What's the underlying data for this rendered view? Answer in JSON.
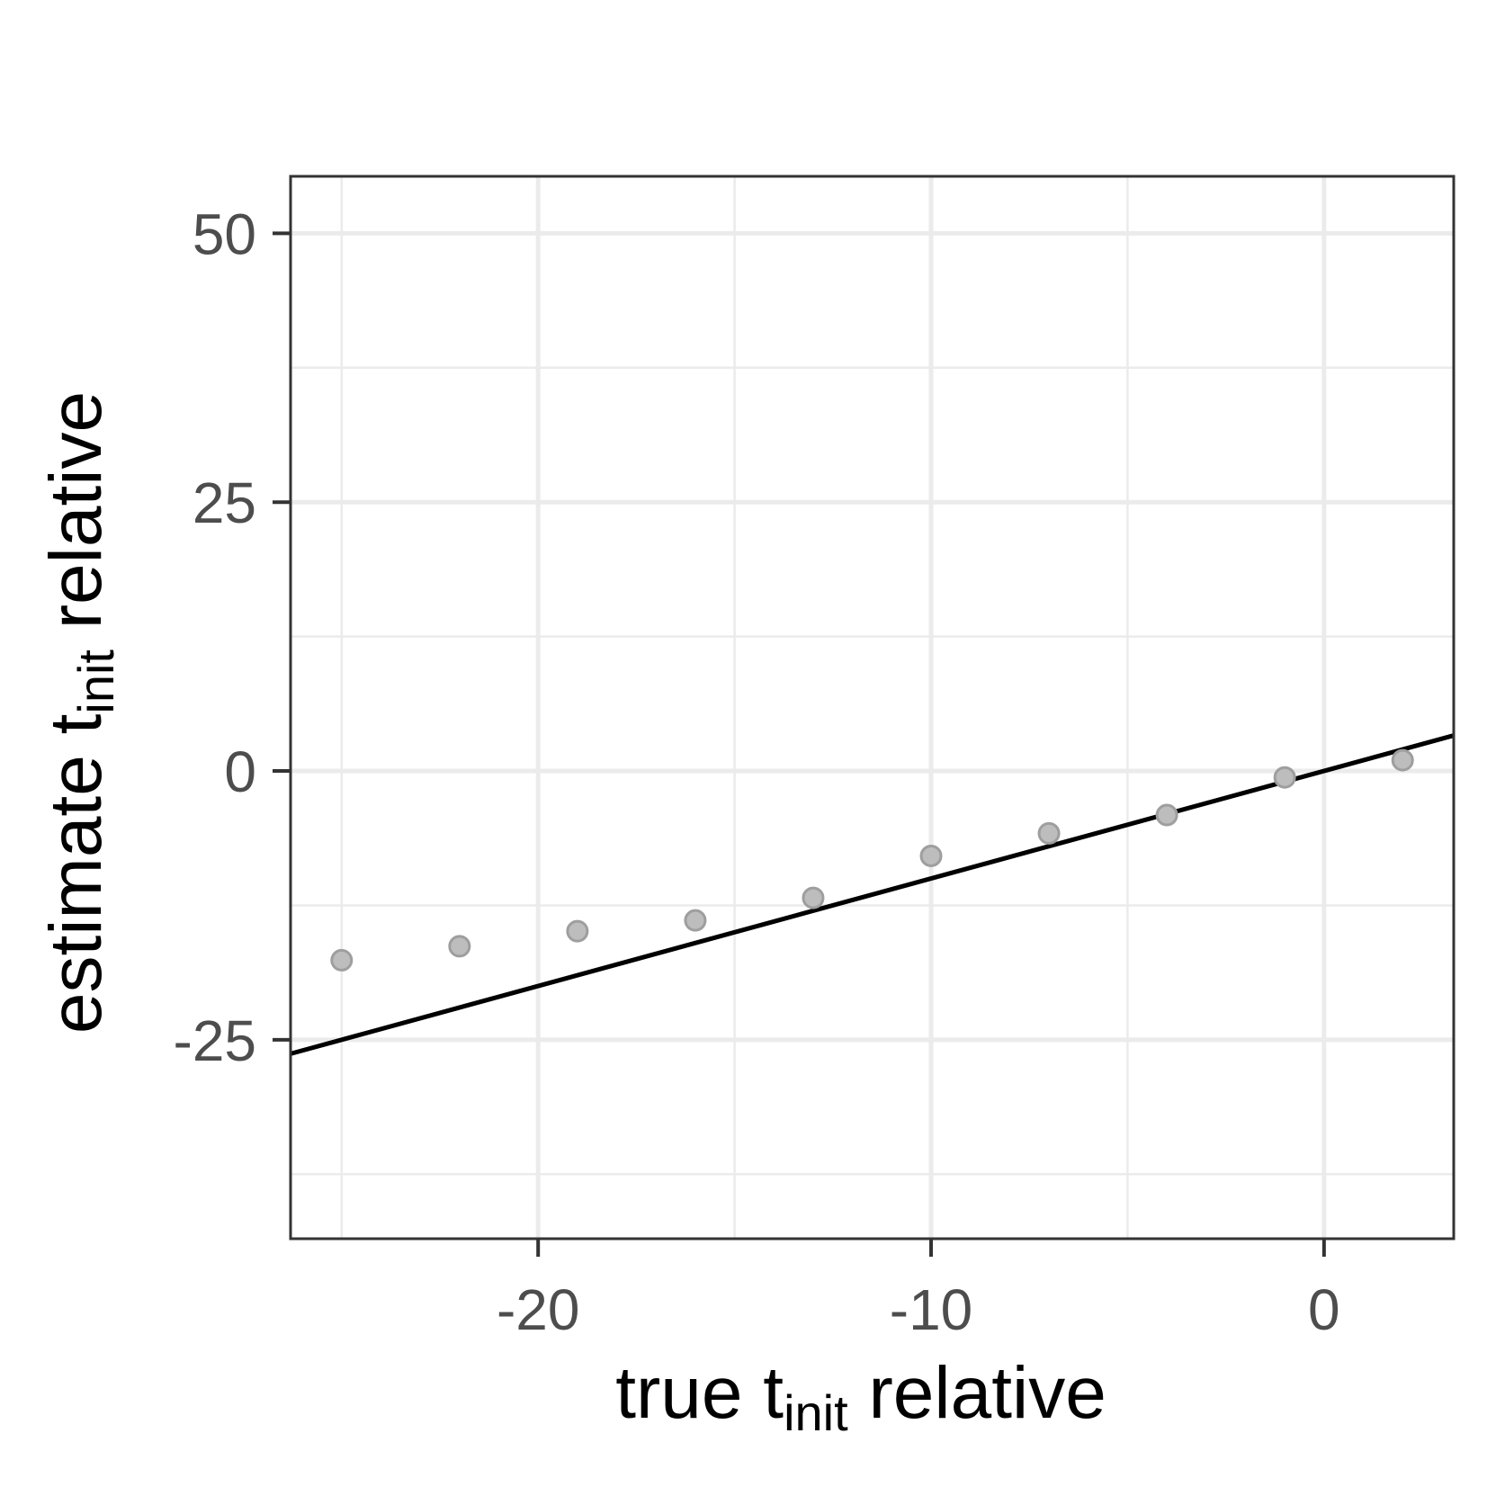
{
  "chart_data": {
    "type": "scatter",
    "title": "",
    "xlabel": {
      "main": "true t",
      "subscript": "init",
      "suffix": " relative"
    },
    "ylabel": {
      "main": "estimate t",
      "subscript": "init",
      "suffix": " relative"
    },
    "xlim": [
      -26.3,
      3.3
    ],
    "ylim": [
      -43.5,
      55.3
    ],
    "x_ticks": [
      -20,
      -10,
      0
    ],
    "x_tick_labels": [
      "-20",
      "-10",
      "0"
    ],
    "x_minor_ticks": [
      -25,
      -15,
      -5
    ],
    "y_ticks": [
      -25,
      0,
      25,
      50
    ],
    "y_tick_labels": [
      "-25",
      "0",
      "25",
      "50"
    ],
    "y_minor_ticks": [
      -37.5,
      -12.5,
      12.5,
      37.5
    ],
    "grid": true,
    "series": [
      {
        "name": "estimates",
        "type": "scatter",
        "x": [
          -25,
          -22,
          -19,
          -16,
          -13,
          -10,
          -7,
          -4,
          -1,
          2
        ],
        "y": [
          -17.6,
          -16.3,
          -14.9,
          -13.9,
          -11.8,
          -7.9,
          -5.8,
          -4.1,
          -0.6,
          1.0
        ],
        "color": "#bdbdbd",
        "stroke": "#9e9e9e"
      },
      {
        "name": "identity line",
        "type": "line",
        "x": [
          -26.3,
          3.3
        ],
        "y": [
          -26.3,
          3.3
        ],
        "color": "#000000"
      }
    ],
    "colors": {
      "panel_border": "#333333",
      "grid": "#ebebeb",
      "tick_label": "#4d4d4d",
      "axis_title": "#000000"
    }
  }
}
